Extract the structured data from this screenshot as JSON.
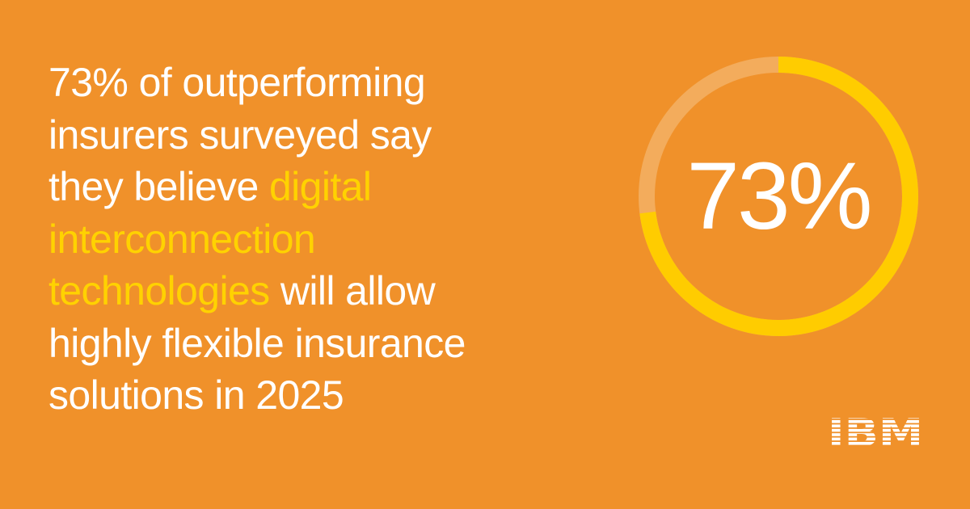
{
  "statement": {
    "line1": "73% of outperforming",
    "line2": "insurers surveyed say",
    "line3_plain": "they believe ",
    "line3_highlight": "digital",
    "line4_highlight": "interconnection",
    "line5_highlight": "technologies",
    "line5_plain": " will allow",
    "line6": "highly flexible insurance",
    "line7": "solutions in 2025"
  },
  "gauge": {
    "label": "73%",
    "percent": 73
  },
  "colors": {
    "background": "#F0912A",
    "text": "#FFFFFF",
    "highlight": "#FFD200",
    "ring_track": "#F3AC5C",
    "ring_fill": "#FFCC00"
  },
  "logo": {
    "text": "IBM",
    "icon": "ibm-logo"
  }
}
